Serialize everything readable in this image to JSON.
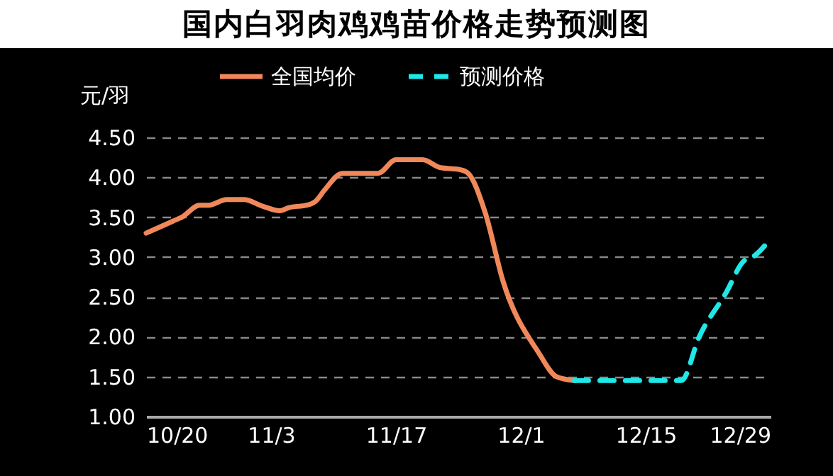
{
  "chart_data": {
    "type": "line",
    "title": "国内白羽肉鸡鸡苗价格走势预测图",
    "ylabel": "元/羽",
    "xlim": [
      "--10-20",
      "--12-29"
    ],
    "xticks": [
      {
        "value": "--10-20",
        "label": "10/20"
      },
      {
        "value": "--11-03",
        "label": "11/3"
      },
      {
        "value": "--11-17",
        "label": "11/17"
      },
      {
        "value": "--12-01",
        "label": "12/1"
      },
      {
        "value": "--12-15",
        "label": "12/15"
      },
      {
        "value": "--12-29",
        "label": "12/29"
      }
    ],
    "ylim": [
      1,
      4.5
    ],
    "yticks": [
      {
        "value": 1,
        "label": "1.00"
      },
      {
        "value": 1.5,
        "label": "1.50"
      },
      {
        "value": 2,
        "label": "2.00"
      },
      {
        "value": 2.5,
        "label": "2.50"
      },
      {
        "value": 3,
        "label": "3.00"
      },
      {
        "value": 3.5,
        "label": "3.50"
      },
      {
        "value": 4,
        "label": "4.00"
      },
      {
        "value": 4.5,
        "label": "4.50"
      }
    ],
    "grid": "y",
    "legend": "top",
    "marker": "none",
    "series": [
      {
        "name": "全国均价",
        "color": "#f0885a",
        "line_style": "solid",
        "x": [
          "--10-20",
          "--10-21",
          "--10-23",
          "--10-24",
          "--10-26",
          "--10-27",
          "--10-29",
          "--10-31",
          "--11-02",
          "--11-04",
          "--11-05",
          "--11-07",
          "--11-08",
          "--11-09",
          "--11-11",
          "--11-15",
          "--11-17",
          "--11-20",
          "--11-22",
          "--11-24",
          "--11-25",
          "--11-27",
          "--11-29",
          "--12-03",
          "--12-05",
          "--12-07"
        ],
        "values": [
          3.3,
          3.35,
          3.45,
          3.5,
          3.65,
          3.65,
          3.72,
          3.72,
          3.64,
          3.58,
          3.62,
          3.65,
          3.7,
          3.84,
          4.05,
          4.05,
          4.22,
          4.22,
          4.12,
          4.1,
          4.06,
          3.56,
          2.7,
          1.8,
          1.5,
          1.45
        ]
      },
      {
        "name": "预测价格",
        "color": "#1ee8e8",
        "line_style": "dashed",
        "x": [
          "--12-07",
          "--12-19",
          "--12-21",
          "--12-24",
          "--12-26",
          "--12-27",
          "--12-29"
        ],
        "values": [
          1.45,
          1.45,
          2.0,
          2.55,
          2.95,
          3.0,
          3.23
        ]
      }
    ]
  }
}
